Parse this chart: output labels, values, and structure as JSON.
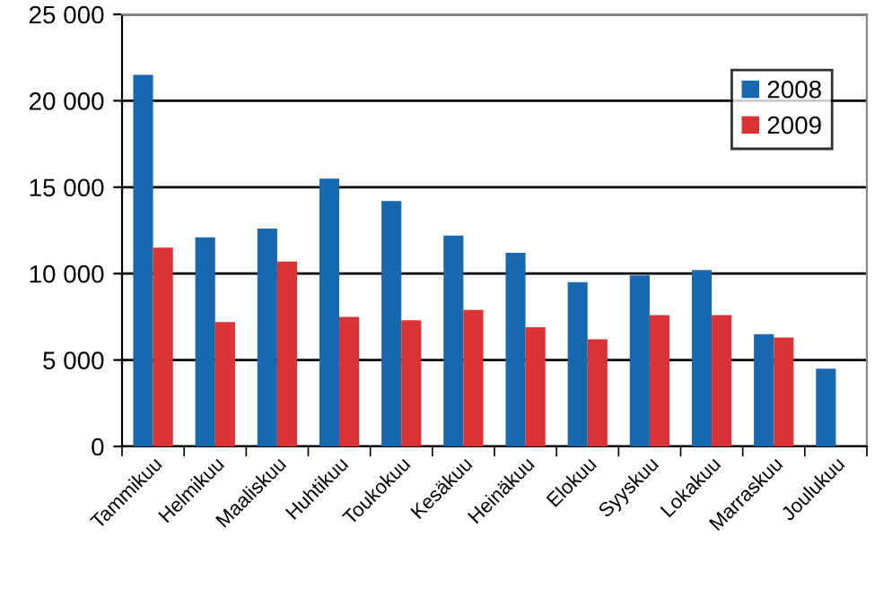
{
  "chart_data": {
    "type": "bar",
    "categories": [
      "Tammikuu",
      "Helmikuu",
      "Maaliskuu",
      "Huhtikuu",
      "Toukokuu",
      "Kesäkuu",
      "Heinäkuu",
      "Elokuu",
      "Syyskuu",
      "Lokakuu",
      "Marraskuu",
      "Joulukuu"
    ],
    "series": [
      {
        "name": "2008",
        "color": "#1868b0",
        "values": [
          21500,
          12100,
          12600,
          15500,
          14200,
          12200,
          11200,
          9500,
          9900,
          10200,
          6500,
          4500
        ]
      },
      {
        "name": "2009",
        "color": "#db3335",
        "values": [
          11500,
          7200,
          10700,
          7500,
          7300,
          7900,
          6900,
          6200,
          7600,
          7600,
          6300,
          null
        ]
      }
    ],
    "ylim": [
      0,
      25000
    ],
    "yticks": [
      {
        "value": 0,
        "label": "0"
      },
      {
        "value": 5000,
        "label": "5 000"
      },
      {
        "value": 10000,
        "label": "10 000"
      },
      {
        "value": 15000,
        "label": "15 000"
      },
      {
        "value": 20000,
        "label": "20 000"
      },
      {
        "value": 25000,
        "label": "25 000"
      }
    ],
    "grid": "y",
    "legend": "top right"
  }
}
